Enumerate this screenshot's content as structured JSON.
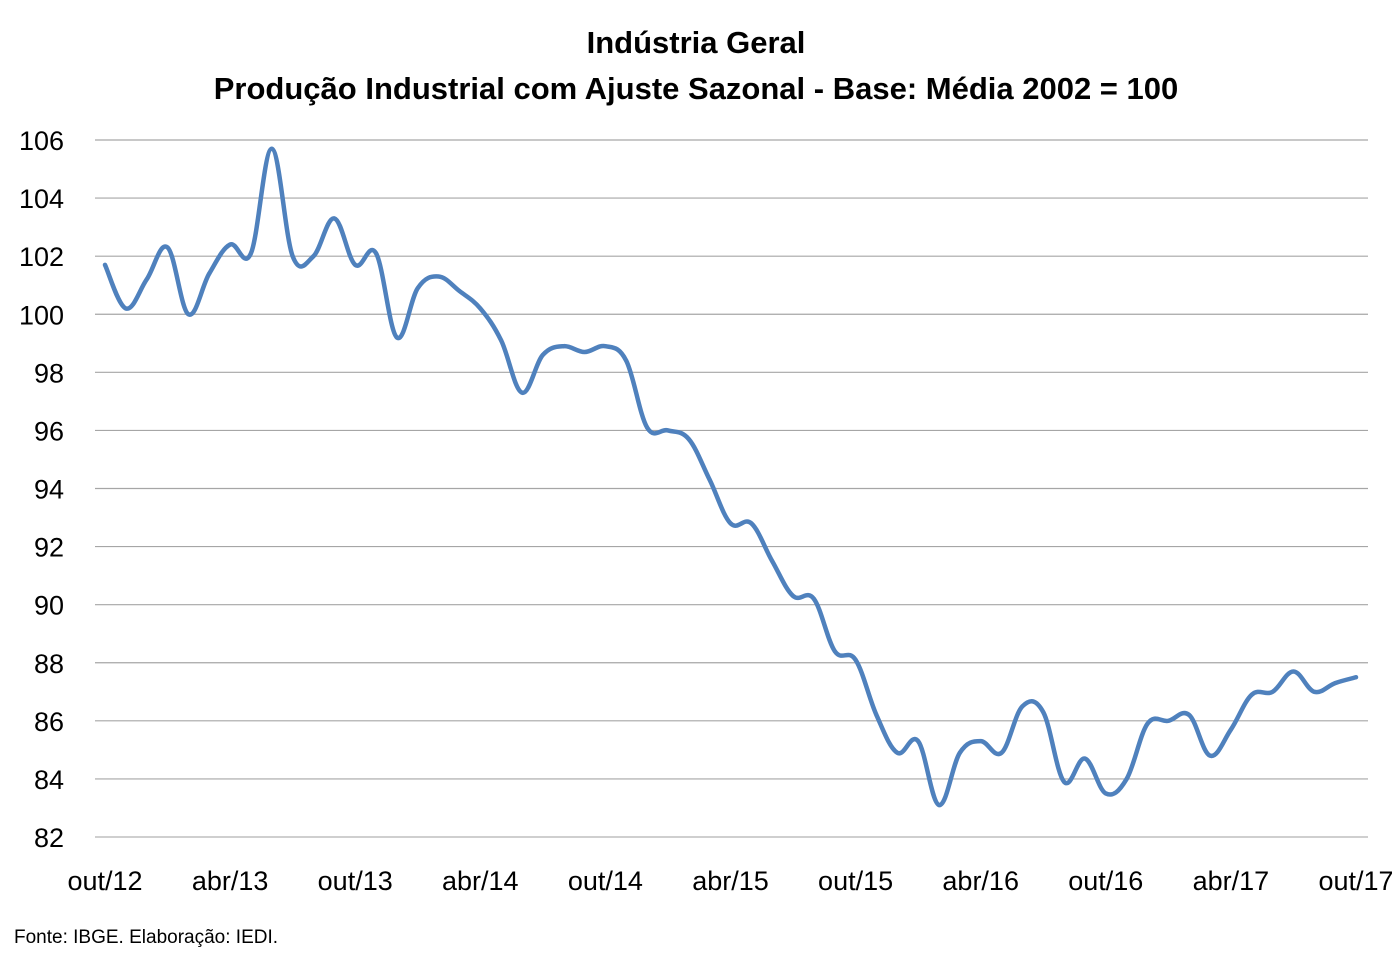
{
  "chart_data": {
    "type": "line",
    "title": "Indústria Geral",
    "subtitle": "Produção Industrial com Ajuste Sazonal - Base: Média 2002 = 100",
    "xlabel": "",
    "ylabel": "",
    "ylim": [
      82,
      106
    ],
    "yticks": [
      82,
      84,
      86,
      88,
      90,
      92,
      94,
      96,
      98,
      100,
      102,
      104,
      106
    ],
    "xtick_labels": [
      "out/12",
      "abr/13",
      "out/13",
      "abr/14",
      "out/14",
      "abr/15",
      "out/15",
      "abr/16",
      "out/16",
      "abr/17",
      "out/17"
    ],
    "x": [
      "out/12",
      "nov/12",
      "dez/12",
      "jan/13",
      "fev/13",
      "mar/13",
      "abr/13",
      "mai/13",
      "jun/13",
      "jul/13",
      "ago/13",
      "set/13",
      "out/13",
      "nov/13",
      "dez/13",
      "jan/14",
      "fev/14",
      "mar/14",
      "abr/14",
      "mai/14",
      "jun/14",
      "jul/14",
      "ago/14",
      "set/14",
      "out/14",
      "nov/14",
      "dez/14",
      "jan/15",
      "fev/15",
      "mar/15",
      "abr/15",
      "mai/15",
      "jun/15",
      "jul/15",
      "ago/15",
      "set/15",
      "out/15",
      "nov/15",
      "dez/15",
      "jan/16",
      "fev/16",
      "mar/16",
      "abr/16",
      "mai/16",
      "jun/16",
      "jul/16",
      "ago/16",
      "set/16",
      "out/16",
      "nov/16",
      "dez/16",
      "jan/17",
      "fev/17",
      "mar/17",
      "abr/17",
      "mai/17",
      "jun/17",
      "jul/17",
      "ago/17",
      "set/17",
      "out/17"
    ],
    "series": [
      {
        "name": "",
        "color": "#4f81bd",
        "values": [
          101.7,
          100.2,
          101.2,
          102.3,
          100.0,
          101.4,
          102.4,
          102.1,
          105.7,
          102.0,
          102.0,
          103.3,
          101.7,
          102.1,
          99.2,
          100.9,
          101.3,
          100.8,
          100.2,
          99.1,
          97.3,
          98.6,
          98.9,
          98.7,
          98.9,
          98.4,
          96.1,
          96.0,
          95.7,
          94.3,
          92.8,
          92.8,
          91.5,
          90.3,
          90.2,
          88.4,
          88.1,
          86.2,
          84.9,
          85.3,
          83.1,
          84.9,
          85.3,
          84.9,
          86.5,
          86.3,
          83.9,
          84.7,
          83.5,
          84.0,
          85.9,
          86.0,
          86.2,
          84.8,
          85.7,
          86.9,
          87.0,
          87.7,
          87.0,
          87.3,
          87.5
        ]
      }
    ],
    "grid": "horizontal",
    "legend": "none"
  },
  "source_note": "Fonte: IBGE. Elaboração: IEDI."
}
